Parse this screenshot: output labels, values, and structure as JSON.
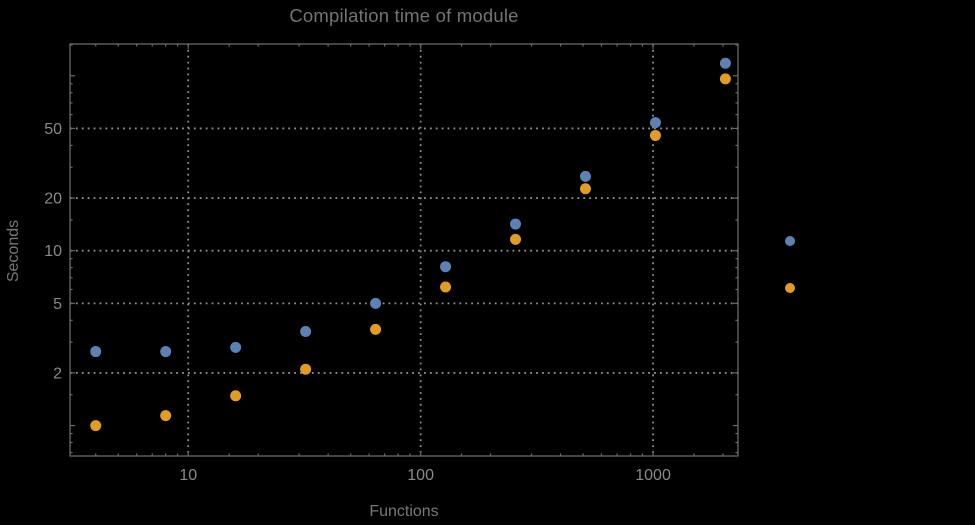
{
  "title": "Compilation time of module",
  "chart_data": {
    "type": "scatter",
    "title": "Compilation time of module",
    "xlabel": "Functions",
    "ylabel": "Seconds",
    "x_scale": "log",
    "y_scale": "log",
    "grid": true,
    "xlim": [
      3.1,
      2320
    ],
    "ylim": [
      0.67,
      152
    ],
    "x_ticks_labeled": [
      10,
      100,
      1000
    ],
    "y_ticks_labeled": [
      2,
      5,
      10,
      20,
      50
    ],
    "x_ticks_minor": [
      4,
      5,
      6,
      7,
      8,
      9,
      15,
      20,
      30,
      40,
      50,
      60,
      70,
      80,
      90,
      150,
      200,
      300,
      400,
      500,
      600,
      700,
      800,
      900,
      1500,
      2000
    ],
    "y_ticks_minor": [
      0.7,
      0.8,
      0.9,
      1.5,
      3,
      4,
      6,
      7,
      8,
      9,
      15,
      30,
      40,
      60,
      70,
      80,
      90,
      150
    ],
    "y_ticks_unlabeled_major": [
      1,
      100
    ],
    "series": [
      {
        "name": "",
        "color": "#5e81b5",
        "points": [
          [
            4,
            2.65
          ],
          [
            8,
            2.65
          ],
          [
            16,
            2.8
          ],
          [
            32,
            3.45
          ],
          [
            64,
            5.0
          ],
          [
            128,
            8.1
          ],
          [
            256,
            14.2
          ],
          [
            512,
            26.6
          ],
          [
            1024,
            54
          ],
          [
            2048,
            118
          ]
        ]
      },
      {
        "name": "",
        "color": "#e19c24",
        "points": [
          [
            4,
            1.0
          ],
          [
            8,
            1.14
          ],
          [
            16,
            1.48
          ],
          [
            32,
            2.1
          ],
          [
            64,
            3.55
          ],
          [
            128,
            6.2
          ],
          [
            256,
            11.6
          ],
          [
            512,
            22.6
          ],
          [
            1024,
            45.6
          ],
          [
            2048,
            96
          ]
        ]
      }
    ],
    "legend": {
      "position": "right-outside",
      "markers": [
        {
          "color": "#5e81b5",
          "label": ""
        },
        {
          "color": "#e19c24",
          "label": ""
        }
      ]
    }
  },
  "style": {
    "background": "#000000",
    "frame_color": "#696969",
    "grid_color": "#8f8f8f",
    "tick_label_color": "#898989",
    "title_color": "#747474",
    "axis_label_color": "#787878"
  }
}
